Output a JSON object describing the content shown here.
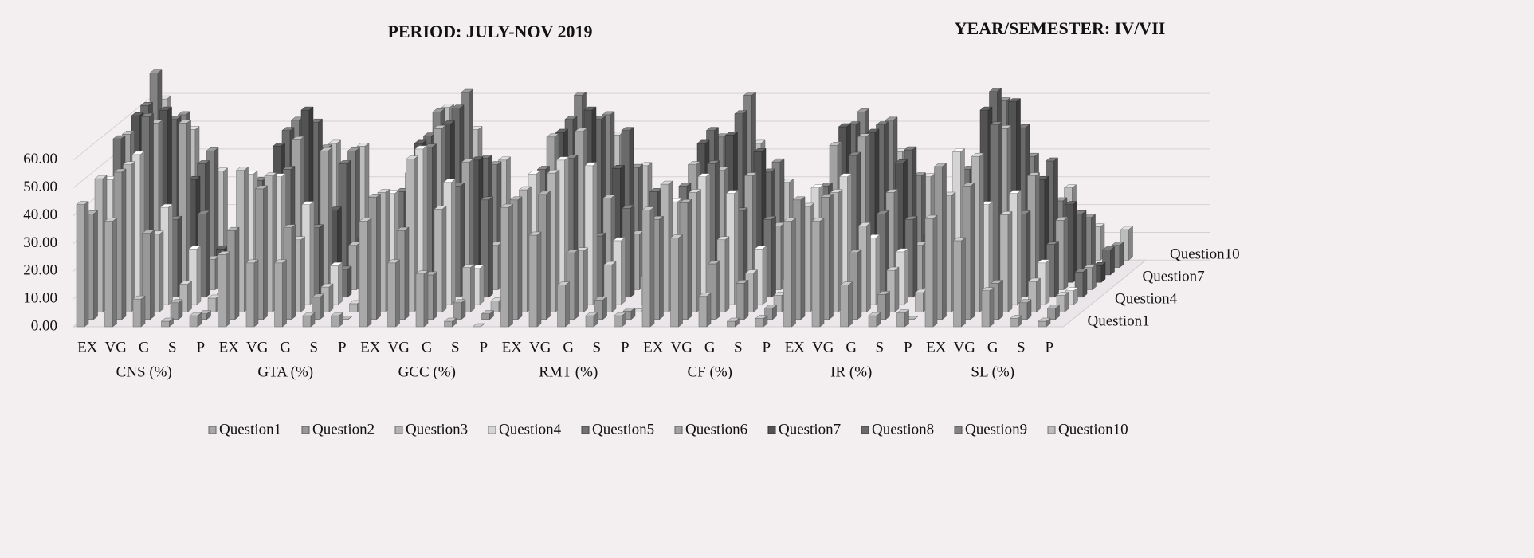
{
  "chart_data": {
    "type": "bar3d",
    "titles": [
      "PERIOD: JULY-NOV 2019",
      "YEAR/SEMESTER: IV/VII"
    ],
    "categories": [
      "EX",
      "VG",
      "G",
      "S",
      "P",
      "EX",
      "VG",
      "G",
      "S",
      "P",
      "EX",
      "VG",
      "G",
      "S",
      "P",
      "EX",
      "VG",
      "G",
      "S",
      "P",
      "EX",
      "VG",
      "G",
      "S",
      "P",
      "EX",
      "VG",
      "G",
      "S",
      "P",
      "EX",
      "VG",
      "G",
      "S",
      "P"
    ],
    "groups": [
      "CNS (%)",
      "GTA (%)",
      "GCC (%)",
      "RMT (%)",
      "CF (%)",
      "IR (%)",
      "SL (%)"
    ],
    "ylim": [
      0,
      70
    ],
    "yticks": [
      {
        "value": 0,
        "label": "0.00"
      },
      {
        "value": 10,
        "label": "10.00"
      },
      {
        "value": 20,
        "label": "20.00"
      },
      {
        "value": 30,
        "label": "30.00"
      },
      {
        "value": 40,
        "label": "40.00"
      },
      {
        "value": 50,
        "label": "50.00"
      },
      {
        "value": 60,
        "label": "60.00"
      }
    ],
    "grid": true,
    "legend": "bottom",
    "series": [
      {
        "name": "Question1",
        "color": "#a8a8a8",
        "values": [
          44,
          38,
          10,
          2,
          4,
          26,
          23,
          23,
          4,
          4,
          38,
          23,
          19,
          2,
          0,
          43,
          33,
          15,
          4,
          4,
          42,
          32,
          11,
          2,
          3,
          38,
          38,
          15,
          4,
          5,
          39,
          31,
          13,
          3,
          2
        ]
      },
      {
        "name": "Question2",
        "color": "#989898",
        "values": [
          38,
          53,
          31,
          6,
          2,
          32,
          47,
          33,
          8,
          0,
          44,
          32,
          16,
          6,
          2,
          43,
          45,
          24,
          7,
          3,
          36,
          42,
          20,
          13,
          4,
          43,
          44,
          24,
          9,
          0,
          55,
          48,
          13,
          6,
          4
        ]
      },
      {
        "name": "Question3",
        "color": "#b4b4b4",
        "values": [
          48,
          53,
          28,
          10,
          5,
          51,
          49,
          26,
          9,
          3,
          43,
          55,
          37,
          16,
          4,
          44,
          50,
          22,
          17,
          0,
          46,
          43,
          26,
          14,
          6,
          38,
          43,
          31,
          15,
          7,
          42,
          56,
          35,
          11,
          6
        ]
      },
      {
        "name": "Question4",
        "color": "#d4d4d4",
        "values": [
          45,
          54,
          35,
          20,
          4,
          47,
          46,
          36,
          14,
          6,
          40,
          56,
          44,
          13,
          2,
          47,
          52,
          50,
          23,
          10,
          37,
          46,
          40,
          20,
          9,
          42,
          46,
          24,
          19,
          3,
          55,
          36,
          40,
          15,
          5
        ]
      },
      {
        "name": "Question5",
        "color": "#727272",
        "values": [
          57,
          65,
          28,
          30,
          2,
          42,
          46,
          25,
          10,
          3,
          38,
          54,
          40,
          35,
          1,
          46,
          50,
          22,
          32,
          5,
          40,
          48,
          31,
          28,
          4,
          40,
          51,
          30,
          28,
          3,
          46,
          62,
          30,
          19,
          9
        ]
      },
      {
        "name": "Question6",
        "color": "#a2a2a2",
        "values": [
          56,
          60,
          60,
          11,
          5,
          40,
          54,
          50,
          16,
          4,
          42,
          58,
          46,
          16,
          6,
          55,
          57,
          33,
          20,
          6,
          45,
          43,
          41,
          23,
          7,
          52,
          55,
          35,
          16,
          3,
          47,
          58,
          41,
          25,
          8
        ]
      },
      {
        "name": "Question7",
        "color": "#535353",
        "values": [
          60,
          62,
          37,
          12,
          1,
          49,
          62,
          26,
          16,
          1,
          50,
          57,
          44,
          13,
          4,
          54,
          62,
          41,
          18,
          3,
          50,
          53,
          47,
          18,
          6,
          56,
          54,
          43,
          17,
          9,
          62,
          65,
          37,
          28,
          6
        ]
      },
      {
        "name": "Question8",
        "color": "#6a6a6a",
        "values": [
          61,
          56,
          40,
          5,
          2,
          52,
          55,
          40,
          12,
          4,
          50,
          60,
          42,
          14,
          5,
          56,
          56,
          52,
          30,
          6,
          52,
          58,
          37,
          9,
          3,
          54,
          54,
          45,
          16,
          4,
          66,
          53,
          41,
          22,
          9
        ]
      },
      {
        "name": "Question9",
        "color": "#828282",
        "values": [
          70,
          55,
          42,
          6,
          2,
          53,
          43,
          42,
          7,
          3,
          56,
          63,
          37,
          10,
          7,
          62,
          55,
          36,
          11,
          3,
          47,
          62,
          38,
          17,
          5,
          56,
          53,
          33,
          18,
          6,
          60,
          40,
          24,
          18,
          8
        ]
      },
      {
        "name": "Question10",
        "color": "#bcbcbc",
        "values": [
          58,
          47,
          32,
          10,
          2,
          46,
          42,
          41,
          12,
          5,
          55,
          47,
          36,
          13,
          5,
          51,
          45,
          34,
          16,
          6,
          42,
          42,
          28,
          12,
          5,
          45,
          39,
          30,
          14,
          10,
          44,
          29,
          26,
          12,
          11
        ]
      }
    ]
  }
}
